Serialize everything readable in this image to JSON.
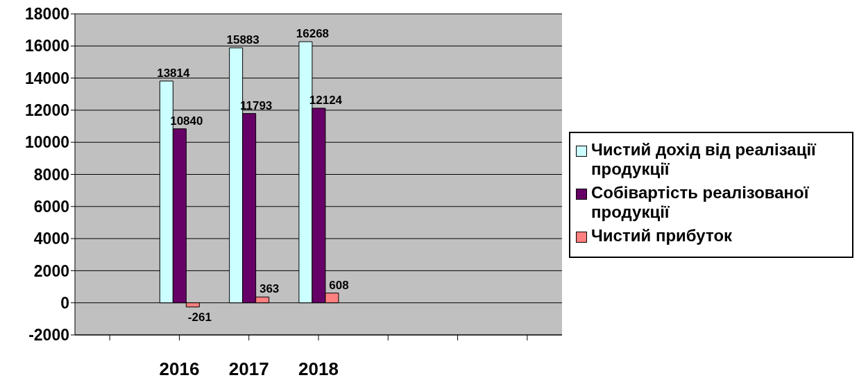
{
  "chart_data": {
    "type": "bar",
    "categories": [
      null,
      "2016",
      "2017",
      "2018",
      null,
      null,
      null
    ],
    "series": [
      {
        "name": "Чистий дохід від реалізації продукції",
        "color": "#ccffff",
        "values": [
          null,
          13814,
          15883,
          16268,
          null,
          null,
          null
        ]
      },
      {
        "name": "Собівартість реалізованої продукції",
        "color": "#660066",
        "values": [
          null,
          10840,
          11793,
          12124,
          null,
          null,
          null
        ]
      },
      {
        "name": "Чистий прибуток",
        "color": "#ff8080",
        "values": [
          null,
          -261,
          363,
          608,
          null,
          null,
          null
        ]
      }
    ],
    "ylim": [
      -2000,
      18000
    ],
    "yticks": [
      -2000,
      0,
      2000,
      4000,
      6000,
      8000,
      10000,
      12000,
      14000,
      16000,
      18000
    ],
    "grid": "y",
    "legend": "right",
    "data_labels": true
  }
}
